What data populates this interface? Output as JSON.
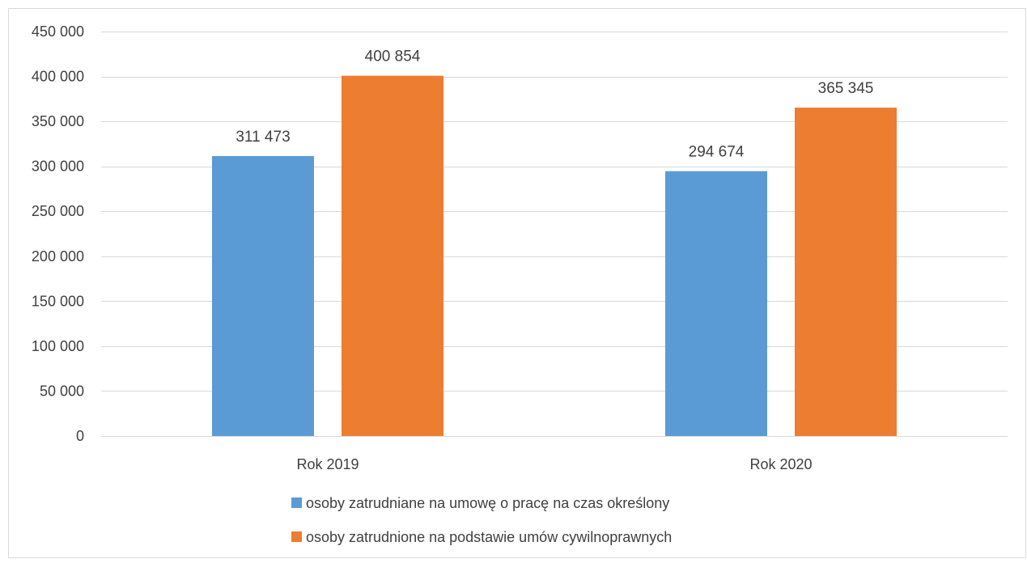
{
  "chart_data": {
    "type": "bar",
    "categories": [
      "Rok 2019",
      "Rok 2020"
    ],
    "series": [
      {
        "name": "osoby zatrudniane na umowę o pracę na czas określony",
        "color": "#5B9BD5",
        "values": [
          311473,
          294674
        ],
        "value_labels": [
          "311 473",
          "294 674"
        ]
      },
      {
        "name": "osoby zatrudnione na podstawie umów cywilnoprawnych",
        "color": "#ED7D31",
        "values": [
          400854,
          365345
        ],
        "value_labels": [
          "400 854",
          "365 345"
        ]
      }
    ],
    "ylim": [
      0,
      450000
    ],
    "yticks": [
      0,
      50000,
      100000,
      150000,
      200000,
      250000,
      300000,
      350000,
      400000,
      450000
    ],
    "ytick_labels": [
      "0",
      "50 000",
      "100 000",
      "150 000",
      "200 000",
      "250 000",
      "300 000",
      "350 000",
      "400 000",
      "450 000"
    ],
    "grid": true,
    "legend_position": "bottom",
    "gridline_color": "#D9D9D9",
    "border_color": "#D9D9D9"
  }
}
